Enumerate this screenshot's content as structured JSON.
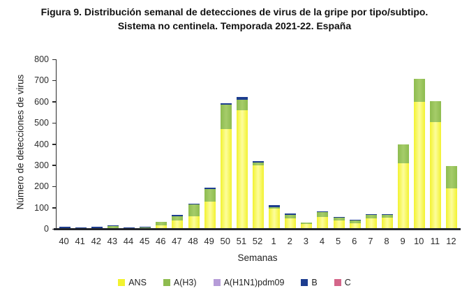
{
  "figure": {
    "title_line1": "Figura 9. Distribución semanal de detecciones de virus de la gripe por tipo/subtipo.",
    "title_line2": "Sistema no centinela. Temporada 2021-22. España"
  },
  "chart_data": {
    "type": "bar",
    "stacked": true,
    "title": "Figura 9. Distribución semanal de detecciones de virus de la gripe por tipo/subtipo. Sistema no centinela. Temporada 2021-22. España",
    "xlabel": "Semanas",
    "ylabel": "Número de detecciones de virus",
    "ylim": [
      0,
      800
    ],
    "ytick_step": 100,
    "grid": false,
    "legend_position": "bottom",
    "categories": [
      "40",
      "41",
      "42",
      "43",
      "44",
      "45",
      "46",
      "47",
      "48",
      "49",
      "50",
      "51",
      "52",
      "1",
      "2",
      "3",
      "4",
      "5",
      "6",
      "7",
      "8",
      "9",
      "10",
      "11",
      "12"
    ],
    "series": [
      {
        "name": "ANS",
        "color": "#f2f230",
        "color_light": "#fdfd9c",
        "values": [
          0,
          0,
          0,
          0,
          0,
          0,
          18,
          40,
          58,
          128,
          470,
          560,
          300,
          95,
          50,
          22,
          55,
          40,
          27,
          48,
          52,
          310,
          600,
          505,
          190
        ]
      },
      {
        "name": "A(H3)",
        "color": "#8ebc4f",
        "color_light": "#a5cc6a",
        "values": [
          2,
          2,
          2,
          12,
          2,
          8,
          15,
          20,
          55,
          58,
          115,
          48,
          12,
          8,
          17,
          8,
          24,
          13,
          12,
          17,
          13,
          90,
          110,
          100,
          105
        ]
      },
      {
        "name": "A(H1N1)pdm09",
        "color": "#b69cd8",
        "color_light": "#b69cd8",
        "values": [
          0,
          0,
          0,
          0,
          0,
          0,
          0,
          0,
          0,
          0,
          0,
          0,
          0,
          0,
          0,
          0,
          0,
          0,
          0,
          0,
          0,
          0,
          0,
          0,
          0
        ]
      },
      {
        "name": "B",
        "color": "#1d3d8f",
        "color_light": "#1d3d8f",
        "values": [
          6,
          1,
          5,
          3,
          3,
          2,
          0,
          5,
          2,
          5,
          5,
          12,
          8,
          10,
          5,
          0,
          1,
          2,
          1,
          3,
          1,
          0,
          0,
          0,
          0
        ]
      },
      {
        "name": "C",
        "color": "#d4668a",
        "color_light": "#d4668a",
        "values": [
          0,
          0,
          0,
          0,
          0,
          0,
          0,
          0,
          0,
          0,
          0,
          0,
          0,
          0,
          0,
          0,
          0,
          0,
          0,
          0,
          0,
          0,
          0,
          0,
          0
        ]
      }
    ]
  }
}
